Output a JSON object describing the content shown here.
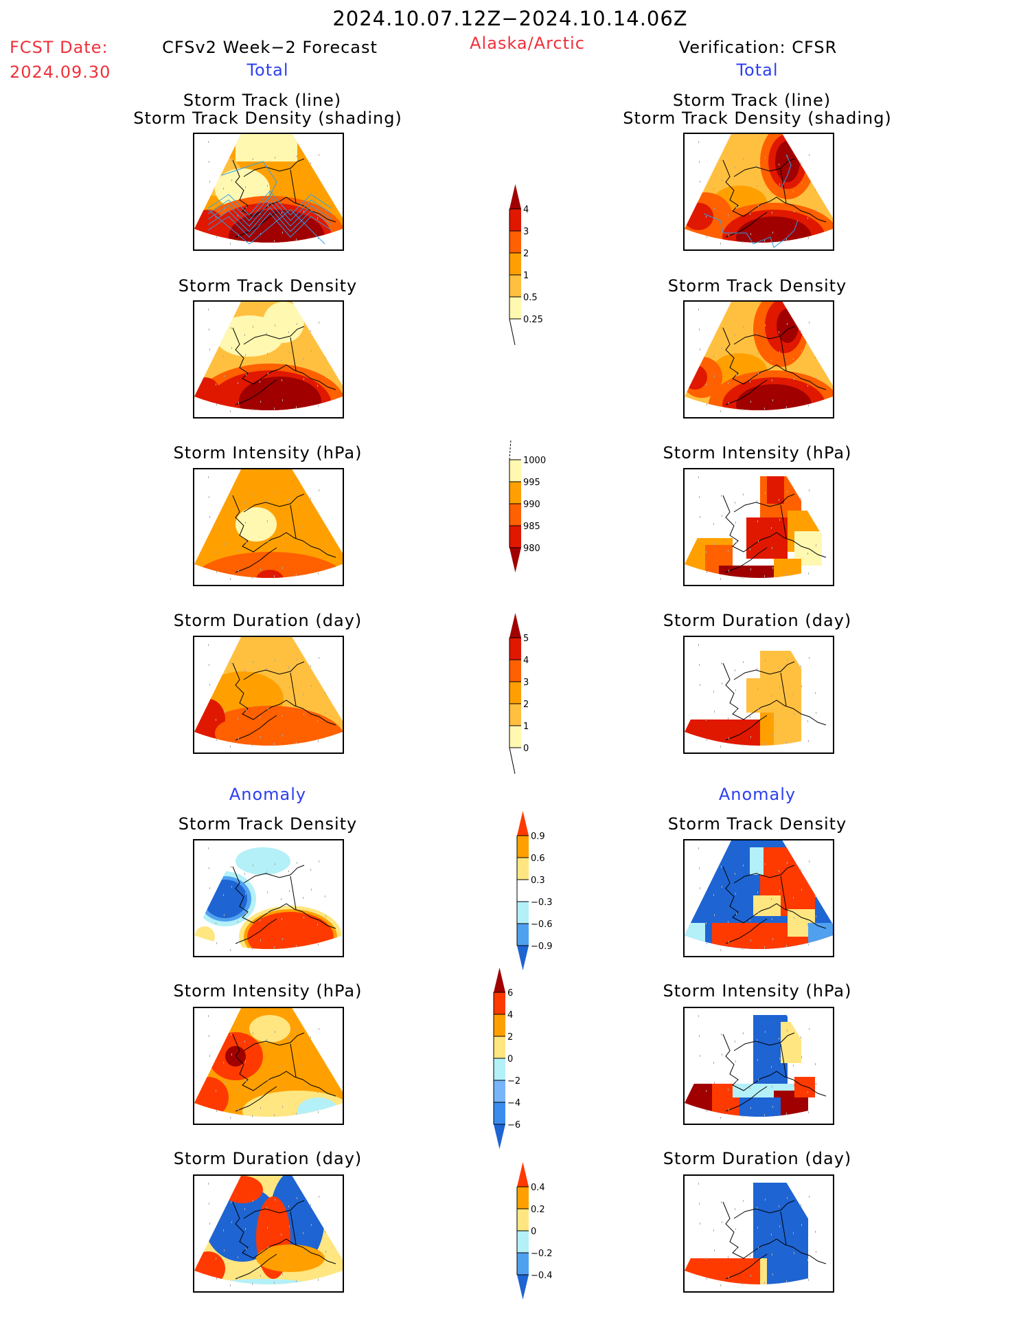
{
  "header": {
    "period": "2024.10.07.12Z−2024.10.14.06Z",
    "region": "Alaska/Arctic",
    "fcst_label": "FCST Date:",
    "fcst_date": "2024.09.30",
    "left_title": "CFSv2 Week−2 Forecast",
    "right_title": "Verification: CFSR",
    "left_section_total": "Total",
    "right_section_total": "Total",
    "left_section_anomaly": "Anomaly",
    "right_section_anomaly": "Anomaly"
  },
  "colors": {
    "accent_red": "#f0303a",
    "accent_blue": "#2b3ef0",
    "track_line": "#2aa0e8"
  },
  "panels": {
    "left": [
      {
        "title1": "Storm Track (line)",
        "title2": "Storm Track Density (shading)"
      },
      {
        "title1": "Storm Track Density"
      },
      {
        "title1": "Storm Intensity (hPa)"
      },
      {
        "title1": "Storm Duration (day)"
      },
      {
        "title1": "Storm Track Density"
      },
      {
        "title1": "Storm Intensity (hPa)"
      },
      {
        "title1": "Storm Duration (day)"
      }
    ],
    "right": [
      {
        "title1": "Storm Track (line)",
        "title2": "Storm Track Density (shading)"
      },
      {
        "title1": "Storm Track Density"
      },
      {
        "title1": "Storm Intensity (hPa)"
      },
      {
        "title1": "Storm Duration (day)"
      },
      {
        "title1": "Storm Track Density"
      },
      {
        "title1": "Storm Intensity (hPa)"
      },
      {
        "title1": "Storm Duration (day)"
      }
    ]
  },
  "chart_data": [
    {
      "type": "heatmap",
      "title": "Storm Track Density colorbar",
      "levels": [
        "0.25",
        "0.5",
        "1",
        "2",
        "3",
        "4"
      ],
      "colors": [
        "#fff8b0",
        "#ffc040",
        "#ffa000",
        "#ff6000",
        "#e01800",
        "#a00000"
      ],
      "extend": "max"
    },
    {
      "type": "heatmap",
      "title": "Storm Intensity (hPa) colorbar",
      "levels": [
        "1000",
        "995",
        "990",
        "985",
        "980"
      ],
      "colors": [
        "#fff8b0",
        "#ffa000",
        "#ff6000",
        "#e01800",
        "#a00000"
      ],
      "extend": "min"
    },
    {
      "type": "heatmap",
      "title": "Storm Duration (day) colorbar",
      "levels": [
        "0",
        "1",
        "2",
        "3",
        "4",
        "5"
      ],
      "colors": [
        "#fff8b0",
        "#ffc040",
        "#ffa000",
        "#ff6000",
        "#e01800",
        "#a00000"
      ],
      "extend": "max"
    },
    {
      "type": "heatmap",
      "title": "Anomaly Storm Track Density colorbar",
      "levels": [
        "0.9",
        "0.6",
        "0.3",
        "−0.3",
        "−0.6",
        "−0.9"
      ],
      "colors": [
        "#ff3a00",
        "#ffa000",
        "#ffe680",
        "#ffffff",
        "#b4f0f8",
        "#50a0f0",
        "#1e64d2"
      ],
      "extend": "both"
    },
    {
      "type": "heatmap",
      "title": "Anomaly Storm Intensity (hPa) colorbar",
      "levels": [
        "6",
        "4",
        "2",
        "0",
        "−2",
        "−4",
        "−6"
      ],
      "colors": [
        "#a00000",
        "#ff3a00",
        "#ffa000",
        "#ffe680",
        "#b4f0f8",
        "#78b4f8",
        "#3c8cf0",
        "#1e64d2"
      ],
      "extend": "both"
    },
    {
      "type": "heatmap",
      "title": "Anomaly Storm Duration (day) colorbar",
      "levels": [
        "0.4",
        "0.2",
        "0",
        "−0.2",
        "−0.4"
      ],
      "colors": [
        "#ff3a00",
        "#ffa000",
        "#ffe680",
        "#b4f0f8",
        "#50a0f0",
        "#1e64d2"
      ],
      "extend": "both"
    }
  ]
}
